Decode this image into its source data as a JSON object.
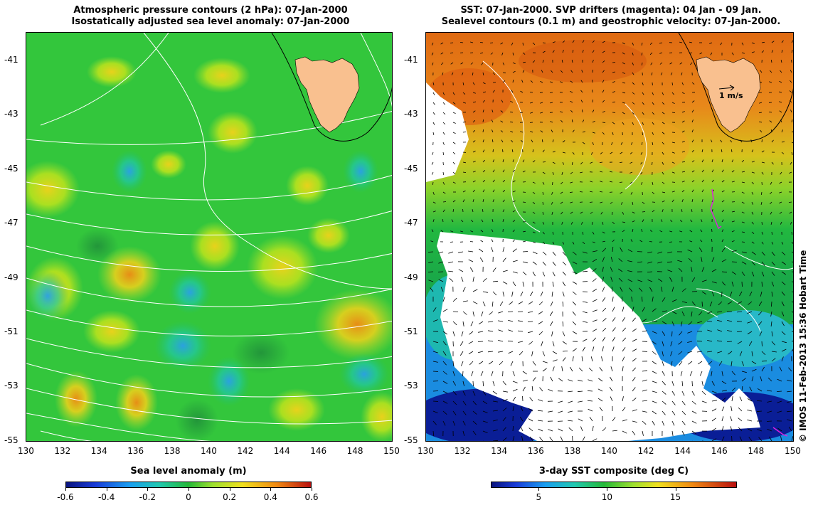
{
  "left": {
    "title_line1": "Atmospheric pressure contours (2 hPa): 07-Jan-2000",
    "title_line2": "Isostatically adjusted sea level anomaly: 07-Jan-2000",
    "colorbar_title": "Sea level anomaly (m)",
    "colorbar_ticks": [
      "-0.6",
      "-0.4",
      "-0.2",
      "0",
      "0.2",
      "0.4",
      "0.6"
    ],
    "colorbar_range": [
      -0.6,
      0.6
    ]
  },
  "right": {
    "title_line1": "SST: 07-Jan-2000. SVP drifters (magenta): 04 Jan - 09 Jan.",
    "title_line2": "Sealevel contours (0.1 m) and geostrophic velocity: 07-Jan-2000.",
    "colorbar_title": "3-day SST composite (deg C)",
    "colorbar_ticks": [
      "5",
      "10",
      "15"
    ],
    "colorbar_range": [
      1.5,
      19.5
    ],
    "velocity_scale_label": "1 m/s"
  },
  "axes": {
    "lon_ticks": [
      "130",
      "132",
      "134",
      "136",
      "138",
      "140",
      "142",
      "144",
      "146",
      "148",
      "150"
    ],
    "lat_ticks": [
      "-41",
      "-43",
      "-45",
      "-47",
      "-49",
      "-51",
      "-53",
      "-55"
    ]
  },
  "copyright": "© IMOS 11-Feb-2013 15:36 Hobart Time",
  "colors": {
    "land": "#f9c08f",
    "sla_low": "#0d1c8c",
    "sla_mid": "#22c24a",
    "sla_high": "#b80f0f",
    "sst_cold": "#0a1890",
    "sst_mid": "#25b040",
    "sst_warm": "#e06c10",
    "drifter": "#e020e0"
  }
}
